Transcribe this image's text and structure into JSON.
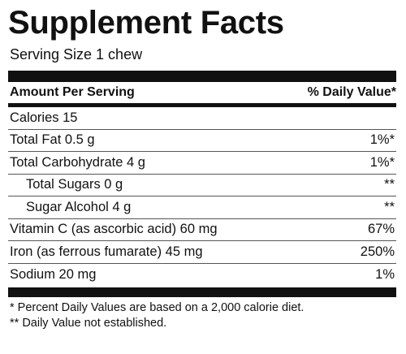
{
  "title": "Supplement Facts",
  "serving_size": "Serving Size 1 chew",
  "header": {
    "amount": "Amount Per Serving",
    "daily_value": "% Daily Value*"
  },
  "rows": [
    {
      "label": "Calories  15",
      "dv": ""
    },
    {
      "label": "Total Fat  0.5 g",
      "dv": "1%*"
    },
    {
      "label": "Total Carbohydrate  4 g",
      "dv": "1%*"
    },
    {
      "label": "Total Sugars  0 g",
      "dv": "**"
    },
    {
      "label": "Sugar Alcohol  4 g",
      "dv": "**"
    },
    {
      "label": "Vitamin C (as ascorbic acid)  60 mg",
      "dv": "67%"
    },
    {
      "label": "Iron (as ferrous fumarate)  45 mg",
      "dv": "250%"
    },
    {
      "label": "Sodium  20 mg",
      "dv": "1%"
    }
  ],
  "footnotes": [
    "* Percent Daily Values are based on a 2,000 calorie diet.",
    "** Daily Value not established."
  ]
}
